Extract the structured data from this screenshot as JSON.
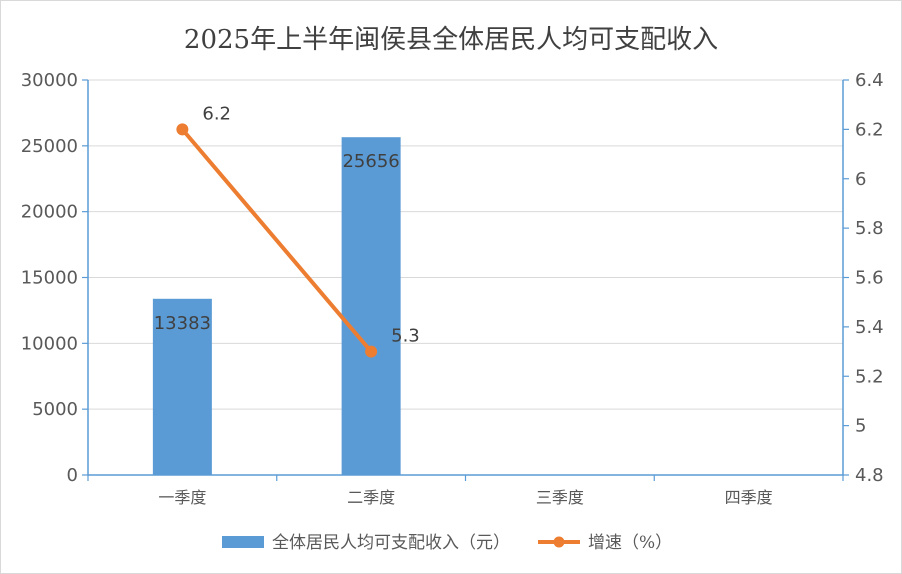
{
  "chart_data": {
    "type": "bar",
    "title": "2025年上半年闽侯县全体居民人均可支配收入",
    "categories": [
      "一季度",
      "二季度",
      "三季度",
      "四季度"
    ],
    "series": [
      {
        "name": "全体居民人均可支配收入（元）",
        "type": "bar",
        "axis": "left",
        "color": "#5b9bd5",
        "values": [
          13383,
          25656,
          null,
          null
        ],
        "labels": [
          "13383",
          "25656",
          "",
          ""
        ]
      },
      {
        "name": "增速（%）",
        "type": "line",
        "axis": "right",
        "color": "#ed7d31",
        "values": [
          6.2,
          5.3,
          null,
          null
        ],
        "labels": [
          "6.2",
          "5.3",
          "",
          ""
        ]
      }
    ],
    "y_left": {
      "min": 0,
      "max": 30000,
      "ticks": [
        0,
        5000,
        10000,
        15000,
        20000,
        25000,
        30000
      ],
      "tick_labels": [
        "0",
        "5000",
        "10000",
        "15000",
        "20000",
        "25000",
        "30000"
      ]
    },
    "y_right": {
      "min": 4.8,
      "max": 6.4,
      "ticks": [
        4.8,
        5,
        5.2,
        5.4,
        5.6,
        5.8,
        6,
        6.2,
        6.4
      ],
      "tick_labels": [
        "4.8",
        "5",
        "5.2",
        "5.4",
        "5.6",
        "5.8",
        "6",
        "6.2",
        "6.4"
      ]
    },
    "grid": true,
    "legend_position": "bottom",
    "colors": {
      "axis": "#5b9bd5",
      "grid": "#d9d9d9"
    }
  }
}
